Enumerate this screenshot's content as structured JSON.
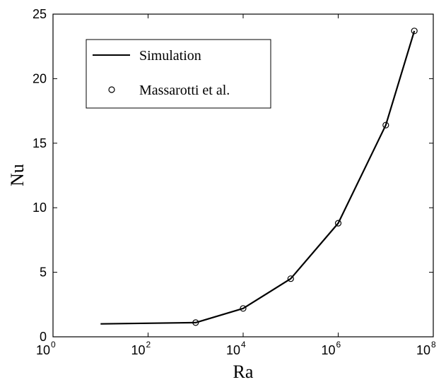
{
  "chart_data": {
    "type": "line",
    "title": "",
    "xlabel": "Ra",
    "ylabel": "Nu",
    "xscale": "log",
    "xlim": [
      1,
      100000000
    ],
    "ylim": [
      0,
      25
    ],
    "x_tick_labels": [
      {
        "base": "10",
        "exp": "0"
      },
      {
        "base": "10",
        "exp": "2"
      },
      {
        "base": "10",
        "exp": "4"
      },
      {
        "base": "10",
        "exp": "6"
      },
      {
        "base": "10",
        "exp": "8"
      }
    ],
    "y_tick_labels": [
      "0",
      "5",
      "10",
      "15",
      "20",
      "25"
    ],
    "grid": false,
    "legend_position": "top-left",
    "series": [
      {
        "name": "Simulation",
        "style": "solid-line",
        "x": [
          10,
          1000,
          10000,
          100000,
          1000000,
          10000000,
          40000000
        ],
        "y": [
          1.0,
          1.1,
          2.2,
          4.5,
          8.8,
          16.4,
          23.7
        ]
      },
      {
        "name": "Massarotti et al.",
        "style": "open-circle",
        "x": [
          1000,
          10000,
          100000,
          1000000,
          10000000,
          40000000
        ],
        "y": [
          1.1,
          2.2,
          4.5,
          8.8,
          16.4,
          23.7
        ]
      }
    ],
    "colors": {
      "line": "#000000",
      "marker": "#000000",
      "background": "#ffffff"
    }
  }
}
